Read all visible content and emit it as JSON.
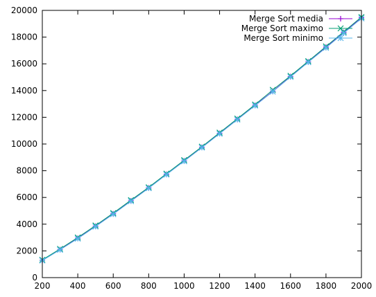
{
  "chart_data": {
    "type": "line",
    "title": "",
    "xlabel": "",
    "ylabel": "",
    "xlim": [
      200,
      2000
    ],
    "ylim": [
      0,
      20000
    ],
    "xticks": [
      200,
      400,
      600,
      800,
      1000,
      1200,
      1400,
      1600,
      1800,
      2000
    ],
    "yticks": [
      0,
      2000,
      4000,
      6000,
      8000,
      10000,
      12000,
      14000,
      16000,
      18000,
      20000
    ],
    "grid": false,
    "legend_position": "top-right",
    "x": [
      200,
      300,
      400,
      500,
      600,
      700,
      800,
      900,
      1000,
      1100,
      1200,
      1300,
      1400,
      1500,
      1600,
      1700,
      1800,
      1900,
      2000
    ],
    "series": [
      {
        "name": "Merge Sort media",
        "color": "#9400d3",
        "marker": "plus",
        "values": [
          1300,
          2100,
          2950,
          3850,
          4780,
          5750,
          6720,
          7740,
          8740,
          9760,
          10800,
          11850,
          12900,
          13950,
          15050,
          16150,
          17250,
          18350,
          19450
        ]
      },
      {
        "name": "Merge Sort maximo",
        "color": "#009e73",
        "marker": "cross",
        "values": [
          1330,
          2150,
          3000,
          3900,
          4830,
          5800,
          6760,
          7780,
          8790,
          9800,
          10850,
          11900,
          12950,
          14050,
          15100,
          16200,
          17300,
          18400,
          19500
        ]
      },
      {
        "name": "Merge Sort minimo",
        "color": "#56b4e9",
        "marker": "star",
        "values": [
          1280,
          2080,
          2920,
          3820,
          4750,
          5720,
          6690,
          7710,
          8710,
          9730,
          10770,
          11820,
          12870,
          13920,
          15020,
          16120,
          17200,
          18300,
          19400
        ]
      }
    ]
  }
}
